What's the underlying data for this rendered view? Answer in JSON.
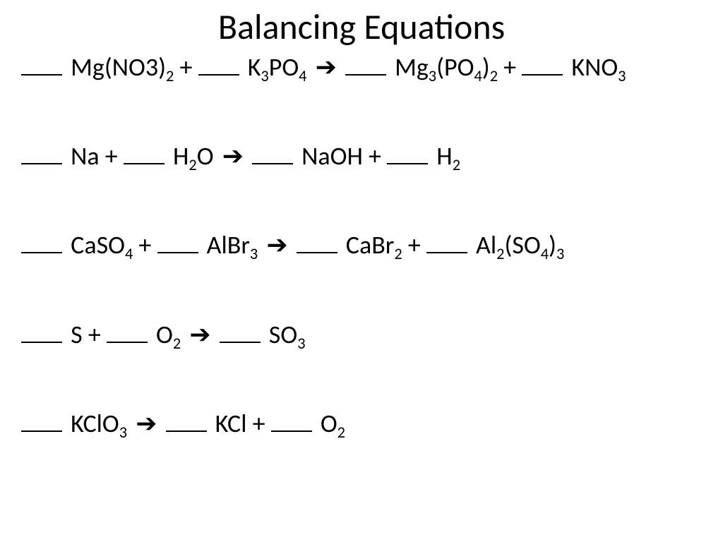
{
  "title": "Balancing Equations",
  "title_fontsize": 50,
  "equation_fontsize": 36,
  "text_color": "#000000",
  "background_color": "#ffffff",
  "arrow_glyph": "➔",
  "equations": [
    {
      "reactants": [
        {
          "formula_html": "Mg(NO3)<sub>2</sub>"
        },
        {
          "formula_html": "K<sub>3</sub>PO<sub>4</sub>"
        }
      ],
      "products": [
        {
          "formula_html": "Mg<sub>3</sub>(PO<sub>4</sub>)<sub>2</sub>"
        },
        {
          "formula_html": "KNO<sub>3</sub>"
        }
      ]
    },
    {
      "reactants": [
        {
          "formula_html": "Na"
        },
        {
          "formula_html": "H<sub>2</sub>O"
        }
      ],
      "products": [
        {
          "formula_html": "NaOH"
        },
        {
          "formula_html": "H<sub>2</sub>"
        }
      ]
    },
    {
      "reactants": [
        {
          "formula_html": "CaSO<sub>4</sub>"
        },
        {
          "formula_html": "AlBr<sub>3</sub>"
        }
      ],
      "products": [
        {
          "formula_html": "CaBr<sub>2</sub>"
        },
        {
          "formula_html": "Al<sub>2</sub>(SO<sub>4</sub>)<sub>3</sub>"
        }
      ]
    },
    {
      "reactants": [
        {
          "formula_html": "S"
        },
        {
          "formula_html": "O<sub>2</sub>"
        }
      ],
      "products": [
        {
          "formula_html": "SO<sub>3</sub>"
        }
      ]
    },
    {
      "reactants": [
        {
          "formula_html": "KClO<sub>3</sub>"
        }
      ],
      "products": [
        {
          "formula_html": "KCl"
        },
        {
          "formula_html": "O<sub>2</sub>"
        }
      ]
    }
  ]
}
